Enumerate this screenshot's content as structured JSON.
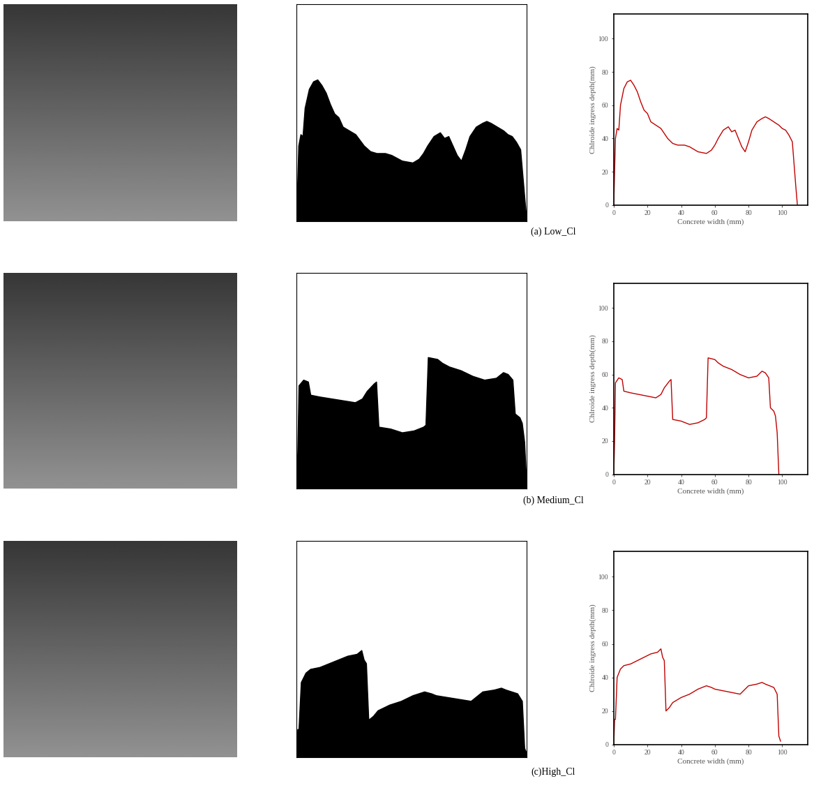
{
  "chart_data": [
    {
      "type": "line",
      "title": "(a) Low_Cl",
      "x_label": "Concrete width (mm)",
      "y_label": "Chlroide ingress depth(mm)",
      "x": [
        0,
        1,
        2,
        3,
        4,
        6,
        8,
        10,
        12,
        14,
        16,
        18,
        20,
        22,
        25,
        28,
        30,
        32,
        35,
        38,
        42,
        45,
        50,
        55,
        58,
        60,
        62,
        65,
        68,
        70,
        72,
        74,
        76,
        78,
        80,
        82,
        85,
        88,
        90,
        92,
        95,
        98,
        100,
        102,
        104,
        106,
        107,
        108,
        109
      ],
      "values": [
        0,
        40,
        46,
        45,
        60,
        70,
        74,
        75,
        72,
        68,
        62,
        57,
        55,
        50,
        48,
        46,
        43,
        40,
        37,
        36,
        36,
        35,
        32,
        31,
        33,
        36,
        40,
        45,
        47,
        44,
        45,
        40,
        35,
        32,
        38,
        45,
        50,
        52,
        53,
        52,
        50,
        48,
        46,
        45,
        42,
        38,
        25,
        12,
        0
      ],
      "color": "#c00000",
      "xlim": [
        0,
        115
      ],
      "ylim": [
        0,
        115
      ],
      "xticks": [
        0,
        20,
        40,
        60,
        80,
        100
      ],
      "yticks": [
        0,
        20,
        40,
        60,
        80,
        100
      ]
    },
    {
      "type": "line",
      "title": "(b) Medium_Cl",
      "x_label": "Concrete width (mm)",
      "y_label": "Chlroide ingress depth(mm)",
      "x": [
        0,
        0.5,
        1,
        3,
        5,
        6,
        10,
        15,
        20,
        25,
        28,
        30,
        33,
        34,
        35,
        40,
        45,
        50,
        54,
        55,
        56,
        60,
        62,
        65,
        70,
        75,
        80,
        85,
        88,
        90,
        92,
        93,
        95,
        96,
        97,
        98
      ],
      "values": [
        0,
        20,
        55,
        58,
        57,
        50,
        49,
        48,
        47,
        46,
        48,
        52,
        56,
        57,
        33,
        32,
        30,
        31,
        33,
        34,
        70,
        69,
        67,
        65,
        63,
        60,
        58,
        59,
        62,
        61,
        58,
        40,
        38,
        35,
        25,
        0
      ],
      "color": "#c00000",
      "xlim": [
        0,
        115
      ],
      "ylim": [
        0,
        115
      ],
      "xticks": [
        0,
        20,
        40,
        60,
        80,
        100
      ],
      "yticks": [
        0,
        20,
        40,
        60,
        80,
        100
      ]
    },
    {
      "type": "line",
      "title": "(c)High_Cl",
      "x_label": "Concrete width (mm)",
      "y_label": "Chlroide ingress depth(mm)",
      "x": [
        0,
        0.5,
        1,
        2,
        4,
        6,
        10,
        14,
        18,
        22,
        26,
        28,
        29,
        30,
        31,
        33,
        35,
        40,
        45,
        50,
        55,
        58,
        60,
        65,
        70,
        75,
        78,
        80,
        85,
        88,
        90,
        95,
        97,
        98,
        99
      ],
      "values": [
        0,
        15,
        15,
        40,
        45,
        47,
        48,
        50,
        52,
        54,
        55,
        57,
        52,
        50,
        20,
        22,
        25,
        28,
        30,
        33,
        35,
        34,
        33,
        32,
        31,
        30,
        33,
        35,
        36,
        37,
        36,
        34,
        30,
        5,
        2
      ],
      "color": "#c00000",
      "xlim": [
        0,
        115
      ],
      "ylim": [
        0,
        115
      ],
      "xticks": [
        0,
        20,
        40,
        60,
        80,
        100
      ],
      "yticks": [
        0,
        20,
        40,
        60,
        80,
        100
      ]
    }
  ]
}
